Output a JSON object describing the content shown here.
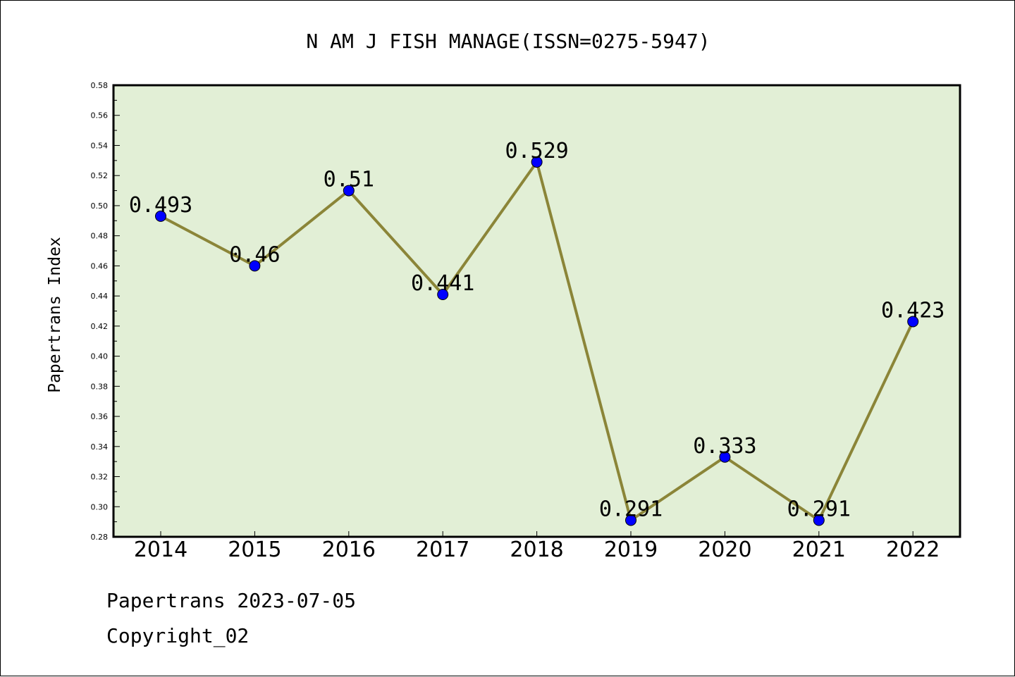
{
  "chart_data": {
    "type": "line",
    "title": "N AM J FISH MANAGE(ISSN=0275-5947)",
    "xlabel": "",
    "ylabel": "Papertrans Index",
    "categories": [
      "2014",
      "2015",
      "2016",
      "2017",
      "2018",
      "2019",
      "2020",
      "2021",
      "2022"
    ],
    "series": [
      {
        "values": [
          0.493,
          0.46,
          0.51,
          0.441,
          0.529,
          0.291,
          0.333,
          0.291,
          0.423
        ]
      }
    ],
    "data_labels": [
      "0.493",
      "0.46",
      "0.51",
      "0.441",
      "0.529",
      "0.291",
      "0.333",
      "0.291",
      "0.423"
    ],
    "ylim": [
      0.28,
      0.58
    ],
    "yticks": [
      "0.28",
      "0.30",
      "0.32",
      "0.34",
      "0.36",
      "0.38",
      "0.40",
      "0.42",
      "0.44",
      "0.46",
      "0.48",
      "0.50",
      "0.52",
      "0.54",
      "0.56",
      "0.58"
    ],
    "grid": false,
    "legend": "none",
    "colors": {
      "plot_background": "#e2efd6",
      "line": "#8b8538",
      "marker": "#0000ff",
      "axis": "#000000"
    }
  },
  "footer": {
    "line1": "Papertrans 2023-07-05",
    "line2": "Copyright_02"
  }
}
